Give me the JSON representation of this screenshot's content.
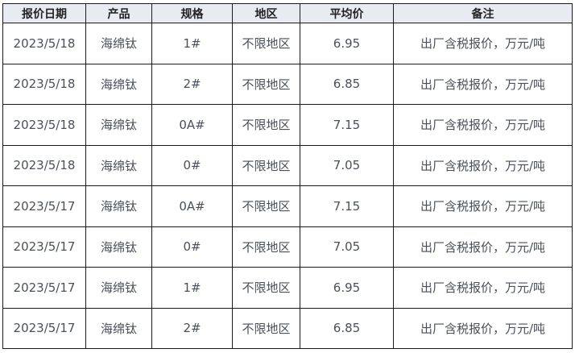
{
  "headers": [
    "报价日期",
    "产品",
    "规格",
    "地区",
    "平均价",
    "备注"
  ],
  "rows": [
    [
      "2023/5/18",
      "海绵钛",
      "1#",
      "不限地区",
      "6.95",
      "出厂含税报价，万元/吨"
    ],
    [
      "2023/5/18",
      "海绵钛",
      "2#",
      "不限地区",
      "6.85",
      "出厂含税报价，万元/吨"
    ],
    [
      "2023/5/18",
      "海绵钛",
      "0A#",
      "不限地区",
      "7.15",
      "出厂含税报价，万元/吨"
    ],
    [
      "2023/5/18",
      "海绵钛",
      "0#",
      "不限地区",
      "7.05",
      "出厂含税报价，万元/吨"
    ],
    [
      "2023/5/17",
      "海绵钛",
      "0A#",
      "不限地区",
      "7.15",
      "出厂含税报价，万元/吨"
    ],
    [
      "2023/5/17",
      "海绵钛",
      "0#",
      "不限地区",
      "7.05",
      "出厂含税报价，万元/吨"
    ],
    [
      "2023/5/17",
      "海绵钛",
      "1#",
      "不限地区",
      "6.95",
      "出厂含税报价，万元/吨"
    ],
    [
      "2023/5/17",
      "海绵钛",
      "2#",
      "不限地区",
      "6.85",
      "出厂含税报价，万元/吨"
    ]
  ]
}
